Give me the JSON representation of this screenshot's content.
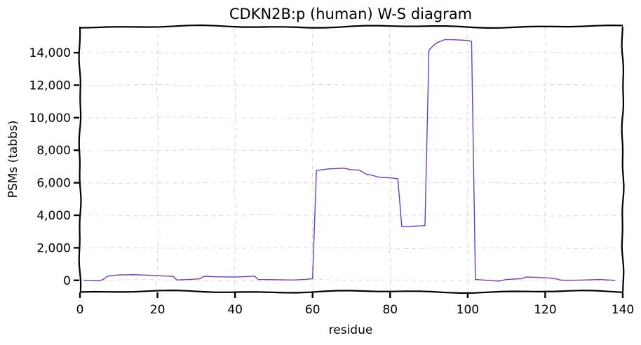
{
  "chart_data": {
    "type": "line",
    "title": "CDKN2B:p (human) W-S diagram",
    "xlabel": "residue",
    "ylabel": "PSMs (tabbs)",
    "xlim": [
      0,
      140
    ],
    "ylim": [
      -700,
      15600
    ],
    "xticks": [
      0,
      20,
      40,
      60,
      80,
      100,
      120,
      140
    ],
    "yticks": [
      0,
      2000,
      4000,
      6000,
      8000,
      10000,
      12000,
      14000
    ],
    "xtick_labels": [
      "0",
      "20",
      "40",
      "60",
      "80",
      "100",
      "120",
      "140"
    ],
    "ytick_labels": [
      "0",
      "2,000",
      "4,000",
      "6,000",
      "8,000",
      "10,000",
      "12,000",
      "14,000"
    ],
    "grid": true,
    "series": [
      {
        "color": "#6a3dc2",
        "x": [
          1,
          3,
          5,
          6,
          7,
          10,
          14,
          18,
          22,
          24,
          25,
          28,
          30,
          31,
          32,
          35,
          40,
          44,
          45,
          46,
          50,
          55,
          58,
          60,
          61,
          64,
          68,
          70,
          72,
          74,
          75,
          77,
          78,
          80,
          82,
          83,
          84,
          86,
          88,
          89,
          90,
          91,
          92,
          94,
          96,
          100,
          101,
          102,
          104,
          106,
          108,
          110,
          112,
          114,
          115,
          118,
          122,
          123,
          124,
          126,
          130,
          134,
          138
        ],
        "y": [
          0,
          -20,
          -30,
          50,
          250,
          330,
          350,
          310,
          260,
          250,
          20,
          50,
          80,
          100,
          250,
          220,
          200,
          240,
          260,
          50,
          40,
          20,
          50,
          100,
          6750,
          6850,
          6900,
          6800,
          6780,
          6500,
          6480,
          6350,
          6330,
          6300,
          6250,
          3300,
          3300,
          3330,
          3350,
          3370,
          14150,
          14400,
          14600,
          14800,
          14800,
          14750,
          14700,
          50,
          20,
          -20,
          -50,
          50,
          80,
          100,
          200,
          180,
          130,
          80,
          10,
          0,
          20,
          50,
          0
        ]
      }
    ]
  }
}
